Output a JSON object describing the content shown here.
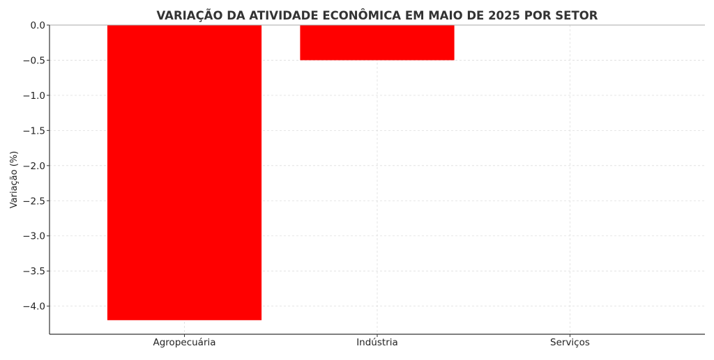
{
  "chart_data": {
    "type": "bar",
    "title": "VARIAÇÃO DA ATIVIDADE ECONÔMICA EM MAIO DE 2025 POR SETOR",
    "xlabel": "",
    "ylabel": "Variação (%)",
    "categories": [
      "Agropecuária",
      "Indústria",
      "Serviços"
    ],
    "values": [
      -4.2,
      -0.5,
      0.0
    ],
    "ylim": [
      -4.4,
      0.0
    ],
    "yticks": [
      0.0,
      -0.5,
      -1.0,
      -1.5,
      -2.0,
      -2.5,
      -3.0,
      -3.5,
      -4.0
    ],
    "ytick_labels": [
      "0.0",
      "−0.5",
      "−1.0",
      "−1.5",
      "−2.0",
      "−2.5",
      "−3.0",
      "−3.5",
      "−4.0"
    ],
    "bar_color": "#ff0000",
    "grid": true
  }
}
